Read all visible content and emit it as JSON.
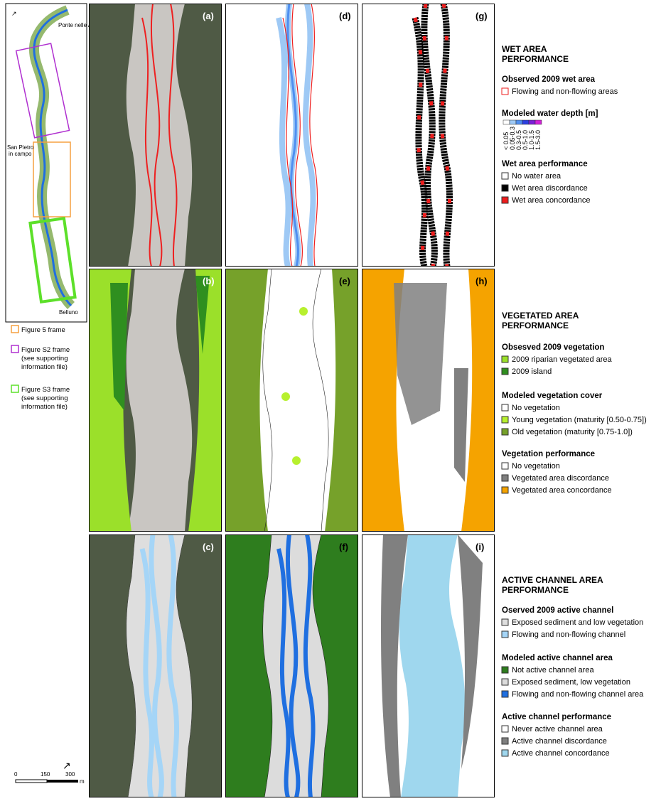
{
  "overview": {
    "places": [
      "Ponte nelle Alpi",
      "San Pietro",
      "in campo",
      "Belluno"
    ],
    "frames": [
      "Figure 5 frame",
      "Figure S2 frame",
      "(see supporting",
      "information file)",
      "Figure S3 frame",
      "(see supporting",
      "information file)"
    ],
    "scale": [
      "0",
      "150",
      "300",
      "m"
    ]
  },
  "panels": [
    "(a)",
    "(d)",
    "(g)",
    "(b)",
    "(e)",
    "(h)",
    "(c)",
    "(f)",
    "(i)"
  ],
  "legend": [
    {
      "title": [
        "WET AREA",
        "PERFORMANCE"
      ],
      "groups": [
        {
          "heading": "Observed 2009 wet area",
          "items": [
            {
              "label": "Flowing and non-flowing areas",
              "color": "#ffffff"
            }
          ]
        },
        {
          "heading": "Modeled water depth [m]",
          "ramp": [
            {
              "label": "< 0.05",
              "color": "#ffffff"
            },
            {
              "label": "0.05-0.3",
              "color": "#9ec9f5"
            },
            {
              "label": "0.3-0.5",
              "color": "#4f8ff0"
            },
            {
              "label": "0.5-1.0",
              "color": "#2d3fe0"
            },
            {
              "label": "1.0-1.5",
              "color": "#7b1fd6"
            },
            {
              "label": "1.5-3.0",
              "color": "#d21fd8"
            }
          ]
        },
        {
          "heading": "Wet area performance",
          "items": [
            {
              "label": "No water area",
              "color": "#ffffff"
            },
            {
              "label": "Wet area discordance",
              "color": "#000000"
            },
            {
              "label": "Wet area concordance",
              "color": "#ee1c1c"
            }
          ]
        }
      ]
    },
    {
      "title": [
        "VEGETATED AREA",
        "PERFORMANCE"
      ],
      "groups": [
        {
          "heading": "Obsesved 2009 vegetation",
          "items": [
            {
              "label": "2009 riparian vegetated area",
              "color": "#9be02a"
            },
            {
              "label": "2009 island",
              "color": "#2f8f1f"
            }
          ]
        },
        {
          "heading": "Modeled vegetation cover",
          "items": [
            {
              "label": "No vegetation",
              "color": "#ffffff"
            },
            {
              "label": "Young vegetation (maturity [0.50-0.75])",
              "color": "#b7f02e"
            },
            {
              "label": "Old vegetation (maturity [0.75-1.0])",
              "color": "#76a12a"
            }
          ]
        },
        {
          "heading": "Vegetation performance",
          "items": [
            {
              "label": "No vegetation",
              "color": "#ffffff"
            },
            {
              "label": "Vegetated area discordance",
              "color": "#808080"
            },
            {
              "label": "Vegetated area concordance",
              "color": "#f5a300"
            }
          ]
        }
      ]
    },
    {
      "title": [
        "ACTIVE CHANNEL AREA",
        "PERFORMANCE"
      ],
      "groups": [
        {
          "heading": "Oserved 2009 active channel",
          "items": [
            {
              "label": "Exposed sediment and low vegetation",
              "color": "#dedede"
            },
            {
              "label": "Flowing and non-flowing channel",
              "color": "#a5d5f7"
            }
          ]
        },
        {
          "heading": "Modeled active channel area",
          "items": [
            {
              "label": "Not active channel area",
              "color": "#2e7d1e"
            },
            {
              "label": "Exposed sediment, low vegetation",
              "color": "#dcdcdc"
            },
            {
              "label": "Flowing and non-flowing channel area",
              "color": "#1f6fe0"
            }
          ]
        },
        {
          "heading": "Active channel performance",
          "items": [
            {
              "label": "Never active channel area",
              "color": "#ffffff"
            },
            {
              "label": "Active channel discordance",
              "color": "#808080"
            },
            {
              "label": "Active channel concordance",
              "color": "#9fd7ee"
            }
          ]
        }
      ]
    }
  ]
}
